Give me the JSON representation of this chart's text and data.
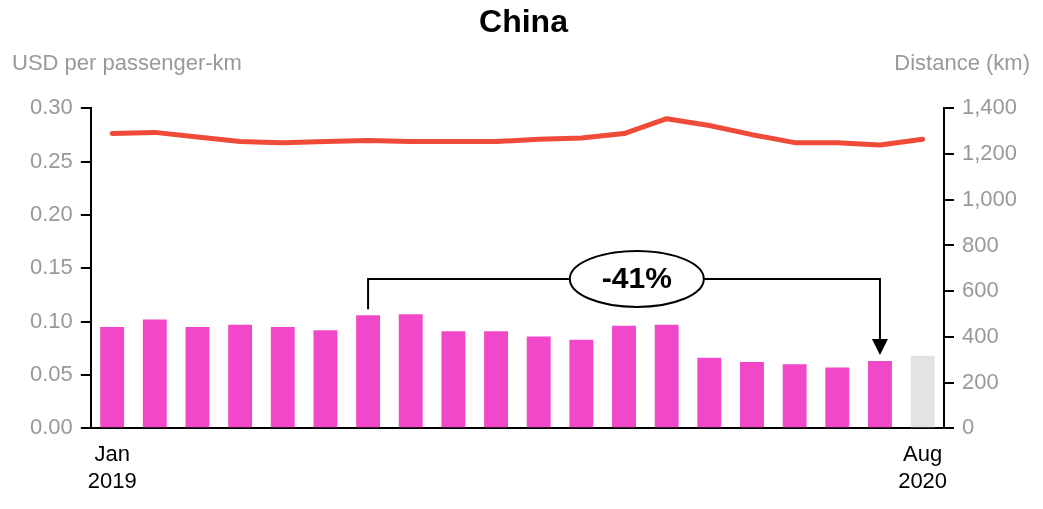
{
  "chart_data": {
    "type": "bar",
    "title": "China",
    "ylabel": "USD per passenger-km",
    "y2label": "Distance (km)",
    "categories": [
      "Jan\n2019",
      null,
      null,
      null,
      null,
      null,
      null,
      null,
      null,
      null,
      null,
      null,
      null,
      null,
      null,
      null,
      null,
      null,
      null,
      "Aug\n2020"
    ],
    "series": [
      {
        "color": "#f048c8",
        "colors": [
          null,
          null,
          null,
          null,
          null,
          null,
          null,
          null,
          null,
          null,
          null,
          null,
          null,
          null,
          null,
          null,
          null,
          null,
          null,
          "#e3e3e3"
        ],
        "values": [
          0.095,
          0.102,
          0.095,
          0.097,
          0.095,
          0.092,
          0.106,
          0.107,
          0.091,
          0.091,
          0.086,
          0.083,
          0.096,
          0.097,
          0.066,
          0.062,
          0.06,
          0.057,
          0.063,
          0.068
        ]
      },
      {
        "type": "line",
        "axis": "y2",
        "color": "#f04a38",
        "values": [
          1290,
          1295,
          1275,
          1255,
          1250,
          1255,
          1260,
          1255,
          1255,
          1255,
          1265,
          1270,
          1290,
          1355,
          1325,
          1285,
          1250,
          1250,
          1240,
          1265
        ]
      }
    ],
    "ylim": [
      0,
      0.3
    ],
    "yticks": [
      {
        "value": 0,
        "label": "0.00"
      },
      {
        "value": 0.05,
        "label": "0.05"
      },
      {
        "value": 0.1,
        "label": "0.10"
      },
      {
        "value": 0.15,
        "label": "0.15"
      },
      {
        "value": 0.2,
        "label": "0.20"
      },
      {
        "value": 0.25,
        "label": "0.25"
      },
      {
        "value": 0.3,
        "label": "0.30"
      }
    ],
    "y2lim": [
      0,
      1400
    ],
    "y2ticks": [
      0,
      200,
      400,
      600,
      800,
      {
        "value": 1000,
        "label": "1,000"
      },
      {
        "value": 1200,
        "label": "1,200"
      },
      {
        "value": 1400,
        "label": "1,400"
      }
    ],
    "annotations": [
      "-41%"
    ],
    "grid": false,
    "legend": false,
    "marker": "none",
    "line_style": "solid"
  }
}
